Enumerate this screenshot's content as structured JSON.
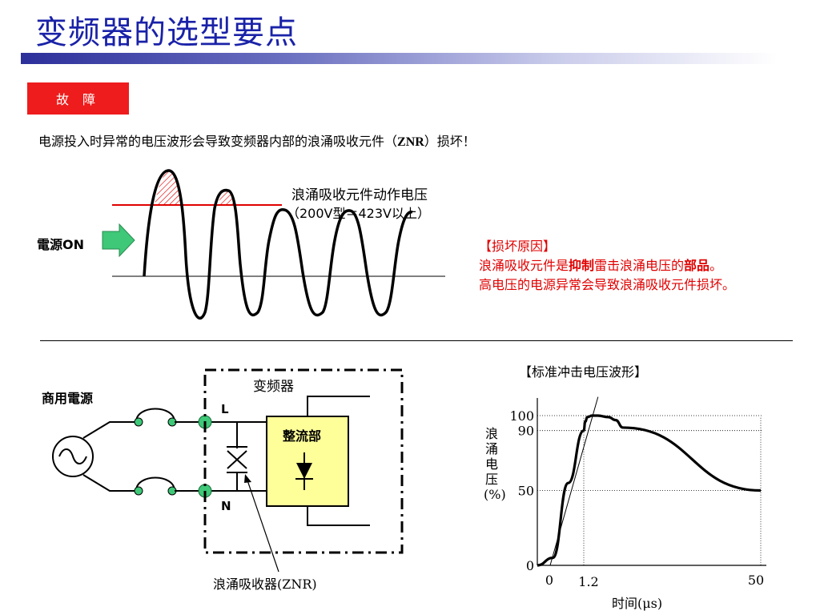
{
  "header": {
    "title": "变频器的选型要点",
    "fault_badge": "故 障",
    "intro_before": "电源投入时异常的电压波形会导致变频器内部的浪涌吸收元件（",
    "intro_bold": "ZNR",
    "intro_after": "）损坏！"
  },
  "waveform": {
    "threshold_label": "浪涌吸收元件动作电压",
    "threshold_note": "（200V型＝423V以上）",
    "power_on_label": "電源ON"
  },
  "cause": {
    "heading": "【损坏原因】",
    "line2_a": "浪涌吸收元件是",
    "line2_b": "抑制",
    "line2_c": "雷击浪涌电压的",
    "line2_d": "部品",
    "line2_e": "。",
    "line3": "高电压的电源异常会导致浪涌吸收元件损坏。"
  },
  "circuit": {
    "commercial_power": "商用電源",
    "inverter_label": "变频器",
    "terminal_l": "L",
    "terminal_n": "N",
    "rectifier_label": "整流部",
    "absorber_label": "浪涌吸收器(ZNR)"
  },
  "chart_data": {
    "type": "line",
    "title": "【标准冲击电压波形】",
    "ylabel": "浪涌电压(%)",
    "xlabel": "时间(μs)",
    "x_tick_labels": [
      "0",
      "1.2",
      "50"
    ],
    "y_tick_labels": [
      "0",
      "50",
      "90",
      "100"
    ],
    "xlim": [
      0,
      50
    ],
    "ylim": [
      0,
      100
    ],
    "series": [
      {
        "x": [
          0,
          0.4,
          0.8,
          1.2,
          1.6,
          2.2,
          3.5,
          5,
          8,
          10,
          12,
          50
        ],
        "y": [
          0,
          5,
          55,
          90,
          96,
          99,
          100,
          100,
          99,
          97,
          92,
          50
        ]
      }
    ],
    "front_line": {
      "x": [
        0,
        1.6
      ],
      "y": [
        0,
        120
      ]
    },
    "grid": "dotted reference lines at 50, 90, 100 and at 1.2, 50",
    "colors": {
      "curve": "#000000"
    }
  },
  "colors": {
    "title": "#1a22a8",
    "badge": "#ee1c1c",
    "threshold_line": "#e00000",
    "arrow": "#3ec878",
    "terminal": "#3ec878",
    "rectifier_fill": "#ffff99",
    "cause_text": "#e00000"
  }
}
